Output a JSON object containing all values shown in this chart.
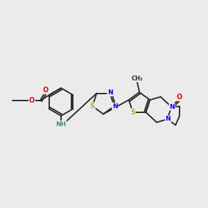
{
  "bg_color": "#ebebeb",
  "bond_color": "#2a2a2a",
  "fig_width": 3.0,
  "fig_height": 3.0,
  "dpi": 100,
  "atom_colors": {
    "N": "#0000ee",
    "O": "#ee0000",
    "S": "#ccaa00",
    "C": "#2a2a2a",
    "NH": "#339988"
  },
  "lw": 1.4,
  "fs": 7.0
}
